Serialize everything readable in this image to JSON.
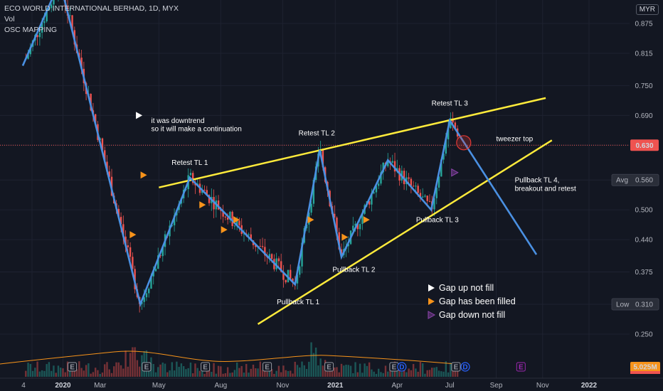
{
  "header": {
    "title": "ECO WORLD INTERNATIONAL BERHAD, 1D, MYX",
    "indicator_1": "Vol",
    "indicator_2": "OSC MAPPING",
    "currency": "MYR"
  },
  "colors": {
    "background": "#131722",
    "zigzag": "#4a90e2",
    "trendline": "#ffeb3b",
    "candle_up": "#26a69a",
    "candle_down": "#ef5350",
    "arrow_filled": "#f7931a",
    "arrow_unfilled_down": "#8e44ad",
    "circle": "#e53935"
  },
  "chart_data": {
    "type": "line",
    "y_axis": {
      "ticks": [
        0.875,
        0.815,
        0.75,
        0.69,
        0.63,
        0.56,
        0.5,
        0.44,
        0.375,
        0.31,
        0.25
      ],
      "labels": [
        "0.875",
        "0.815",
        "0.750",
        "0.690",
        "0.630",
        "0.560",
        "0.500",
        "0.440",
        "0.375",
        "0.310",
        "0.250"
      ],
      "current_price": {
        "label": "0.630",
        "value": 0.63
      },
      "avg": {
        "label": "Avg",
        "value_label": "0.560",
        "value": 0.56
      },
      "low": {
        "label": "Low",
        "value_label": "0.310",
        "value": 0.31
      },
      "volume_label": "5.025M"
    },
    "x_axis": {
      "labels": [
        {
          "t": 0.0,
          "text": "4"
        },
        {
          "t": 1.0,
          "text": "2020"
        },
        {
          "t": 2.2,
          "text": "Mar"
        },
        {
          "t": 4.1,
          "text": "May"
        },
        {
          "t": 6.1,
          "text": "Aug"
        },
        {
          "t": 8.1,
          "text": "Nov"
        },
        {
          "t": 9.8,
          "text": "2021"
        },
        {
          "t": 11.8,
          "text": "Apr"
        },
        {
          "t": 13.5,
          "text": "Jul"
        },
        {
          "t": 15.0,
          "text": "Sep"
        },
        {
          "t": 16.5,
          "text": "Nov"
        },
        {
          "t": 18.0,
          "text": "2022"
        }
      ]
    },
    "zigzag": [
      {
        "t": -0.3,
        "v": 0.79
      },
      {
        "t": 0.9,
        "v": 0.96
      },
      {
        "t": 3.5,
        "v": 0.31
      },
      {
        "t": 5.1,
        "v": 0.565
      },
      {
        "t": 8.5,
        "v": 0.35
      },
      {
        "t": 9.3,
        "v": 0.62
      },
      {
        "t": 10.0,
        "v": 0.405
      },
      {
        "t": 11.5,
        "v": 0.6
      },
      {
        "t": 12.9,
        "v": 0.5
      },
      {
        "t": 13.5,
        "v": 0.68
      },
      {
        "t": 16.3,
        "v": 0.41
      }
    ],
    "trendlines": [
      {
        "name": "upper",
        "from": {
          "t": 4.1,
          "v": 0.545
        },
        "to": {
          "t": 16.6,
          "v": 0.725
        }
      },
      {
        "name": "lower",
        "from": {
          "t": 7.3,
          "v": 0.27
        },
        "to": {
          "t": 16.8,
          "v": 0.64
        }
      }
    ],
    "annotations": [
      {
        "text": "Retest TL 1",
        "t": 5.1,
        "v": 0.59
      },
      {
        "text": "Retest TL 2",
        "t": 9.2,
        "v": 0.65
      },
      {
        "text": "Retest TL 3",
        "t": 13.5,
        "v": 0.71
      },
      {
        "text": "Pullback TL 1",
        "t": 8.6,
        "v": 0.31
      },
      {
        "text": "Pullback TL 2",
        "t": 10.4,
        "v": 0.375
      },
      {
        "text": "Pullback TL 3",
        "t": 13.1,
        "v": 0.475
      },
      {
        "text": "tweezer top",
        "t": 15.0,
        "v": 0.638
      },
      {
        "text": "Pullback TL 4,",
        "t": 15.6,
        "v": 0.555
      },
      {
        "text": "breakout and retest",
        "t": 15.6,
        "v": 0.538
      },
      {
        "text": "it was downtrend",
        "t": 3.85,
        "v": 0.675
      },
      {
        "text": "so it will make a continuation",
        "t": 3.85,
        "v": 0.658
      }
    ],
    "gap_markers": [
      {
        "kind": "up_not_fill",
        "t": 3.45,
        "v": 0.69
      },
      {
        "kind": "filled",
        "t": 3.6,
        "v": 0.57
      },
      {
        "kind": "filled",
        "t": 3.25,
        "v": 0.45
      },
      {
        "kind": "filled",
        "t": 5.5,
        "v": 0.51
      },
      {
        "kind": "filled",
        "t": 6.2,
        "v": 0.46
      },
      {
        "kind": "filled",
        "t": 6.6,
        "v": 0.48
      },
      {
        "kind": "filled",
        "t": 9.0,
        "v": 0.48
      },
      {
        "kind": "filled",
        "t": 10.1,
        "v": 0.445
      },
      {
        "kind": "filled",
        "t": 10.8,
        "v": 0.48
      },
      {
        "kind": "down_not_fill",
        "t": 13.65,
        "v": 0.575
      }
    ],
    "event_badges": [
      {
        "t": 1.3,
        "text": "E"
      },
      {
        "t": 3.7,
        "text": "E"
      },
      {
        "t": 5.6,
        "text": "E"
      },
      {
        "t": 7.6,
        "text": "E"
      },
      {
        "t": 9.6,
        "text": "E"
      },
      {
        "t": 11.7,
        "text": "E"
      },
      {
        "t": 11.95,
        "text": "D"
      },
      {
        "t": 13.7,
        "text": "E"
      },
      {
        "t": 14.0,
        "text": "D"
      },
      {
        "t": 15.8,
        "text": "E"
      }
    ],
    "legend": [
      {
        "symbol": "up_not_fill",
        "text": "Gap up not fill"
      },
      {
        "symbol": "filled",
        "text": "Gap has been filled"
      },
      {
        "symbol": "down_not_fill",
        "text": "Gap down not fill"
      }
    ]
  }
}
